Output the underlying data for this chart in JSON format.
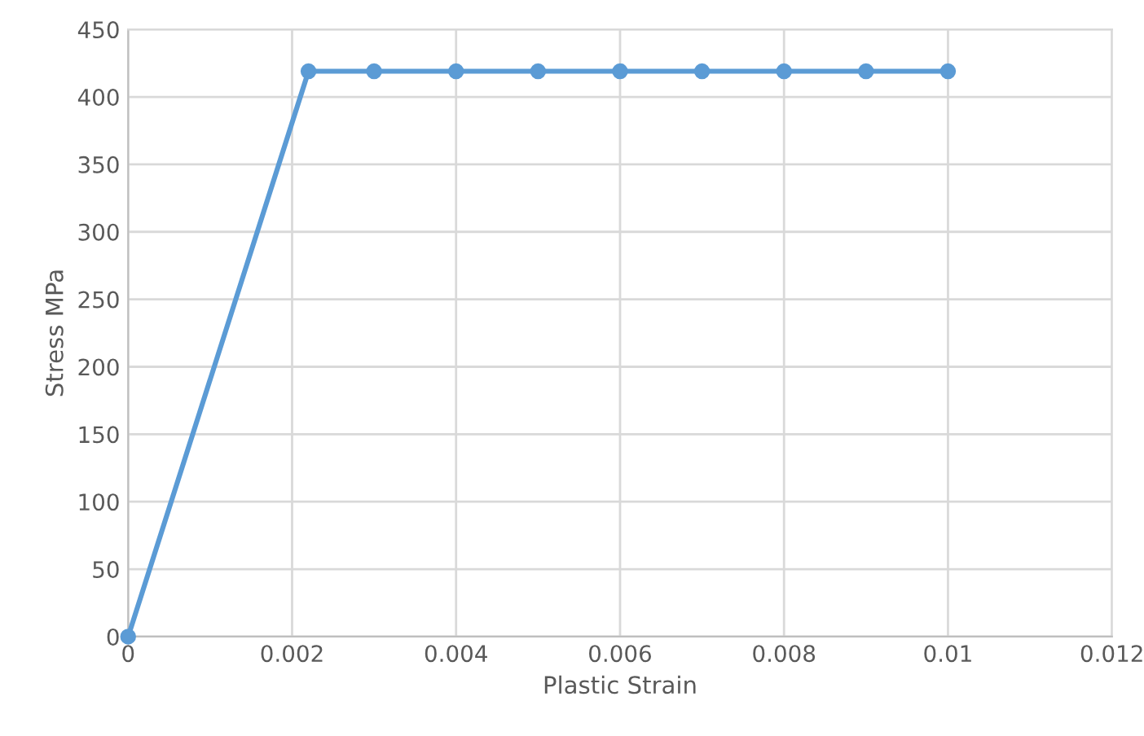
{
  "chart_data": {
    "type": "line",
    "xlabel": "Plastic Strain",
    "ylabel": "Stress MPa",
    "x": [
      0,
      0.0022,
      0.003,
      0.004,
      0.005,
      0.006,
      0.007,
      0.008,
      0.009,
      0.01
    ],
    "series": [
      {
        "color": "#5b9bd5",
        "values": [
          0,
          419,
          419,
          419,
          419,
          419,
          419,
          419,
          419,
          419
        ]
      }
    ],
    "xlim": [
      0,
      0.012
    ],
    "xticks": [
      0,
      0.002,
      0.004,
      0.006,
      0.008,
      0.01,
      0.012
    ],
    "ylim": [
      0,
      450
    ],
    "yticks": [
      0,
      50,
      100,
      150,
      200,
      250,
      300,
      350,
      400,
      450
    ],
    "grid": true,
    "marker": "circle",
    "line_style": "solid",
    "legend": false
  }
}
